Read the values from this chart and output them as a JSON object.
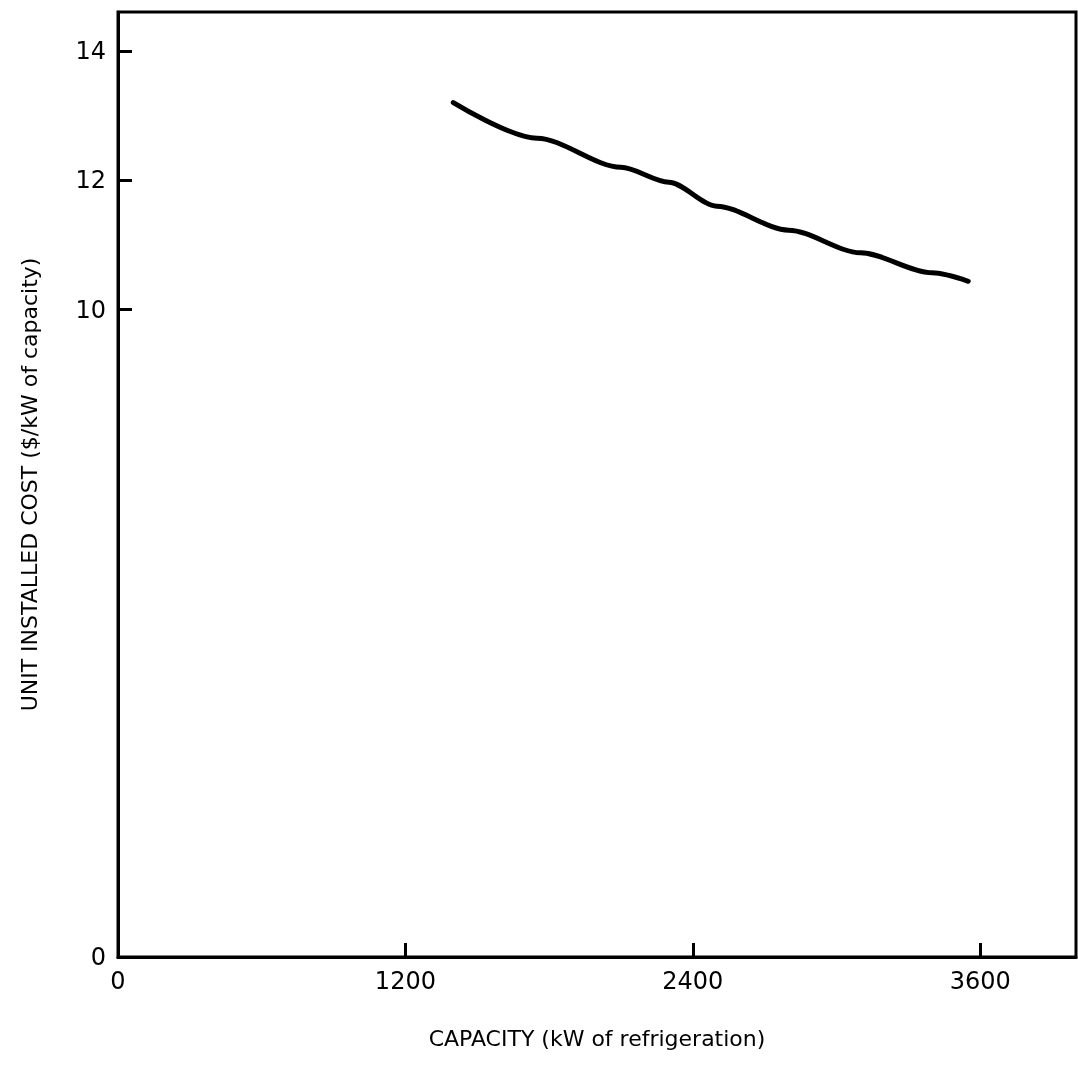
{
  "chart_data": {
    "type": "line",
    "xlabel": "CAPACITY (kW of refrigeration)",
    "ylabel": "UNIT INSTALLED COST ($/kW of capacity)",
    "x": [
      1400,
      1750,
      2100,
      2300,
      2500,
      2800,
      3100,
      3400,
      3550
    ],
    "series": [
      {
        "color": "#000000",
        "values": [
          13.2,
          12.65,
          12.2,
          11.97,
          11.6,
          11.23,
          10.88,
          10.57,
          10.44
        ]
      }
    ],
    "xlim": [
      0,
      4000
    ],
    "xticks": [
      0,
      1200,
      2400,
      3600
    ],
    "ylim": [
      0,
      14.6
    ],
    "yticks": [
      0,
      10,
      12,
      14
    ],
    "grid": false,
    "marker": "none",
    "line_style": "solid"
  }
}
